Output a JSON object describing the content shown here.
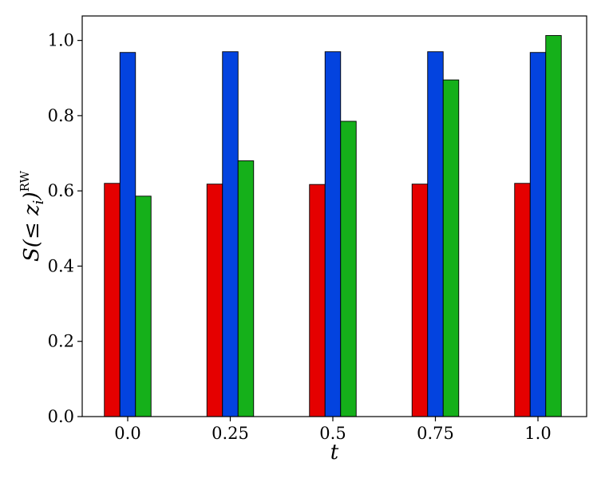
{
  "chart_data": {
    "type": "bar",
    "title": "",
    "xlabel": "t",
    "ylabel": {
      "main": "S(≤ z",
      "sub": "i",
      "close": ")",
      "sup": "RW"
    },
    "categories": [
      "0.0",
      "0.25",
      "0.5",
      "0.75",
      "1.0"
    ],
    "series": [
      {
        "color": "#e50000",
        "values": [
          0.62,
          0.618,
          0.617,
          0.618,
          0.62
        ]
      },
      {
        "color": "#0343df",
        "values": [
          0.968,
          0.97,
          0.97,
          0.97,
          0.968
        ]
      },
      {
        "color": "#15b01a",
        "values": [
          0.586,
          0.68,
          0.785,
          0.895,
          1.013
        ]
      }
    ],
    "ylim": [
      0,
      1.065
    ],
    "yticks": [
      "0.0",
      "0.2",
      "0.4",
      "0.6",
      "0.8",
      "1.0"
    ],
    "ytick_values": [
      0,
      0.2,
      0.4,
      0.6,
      0.8,
      1.0
    ],
    "grid": false,
    "legend": "none"
  }
}
